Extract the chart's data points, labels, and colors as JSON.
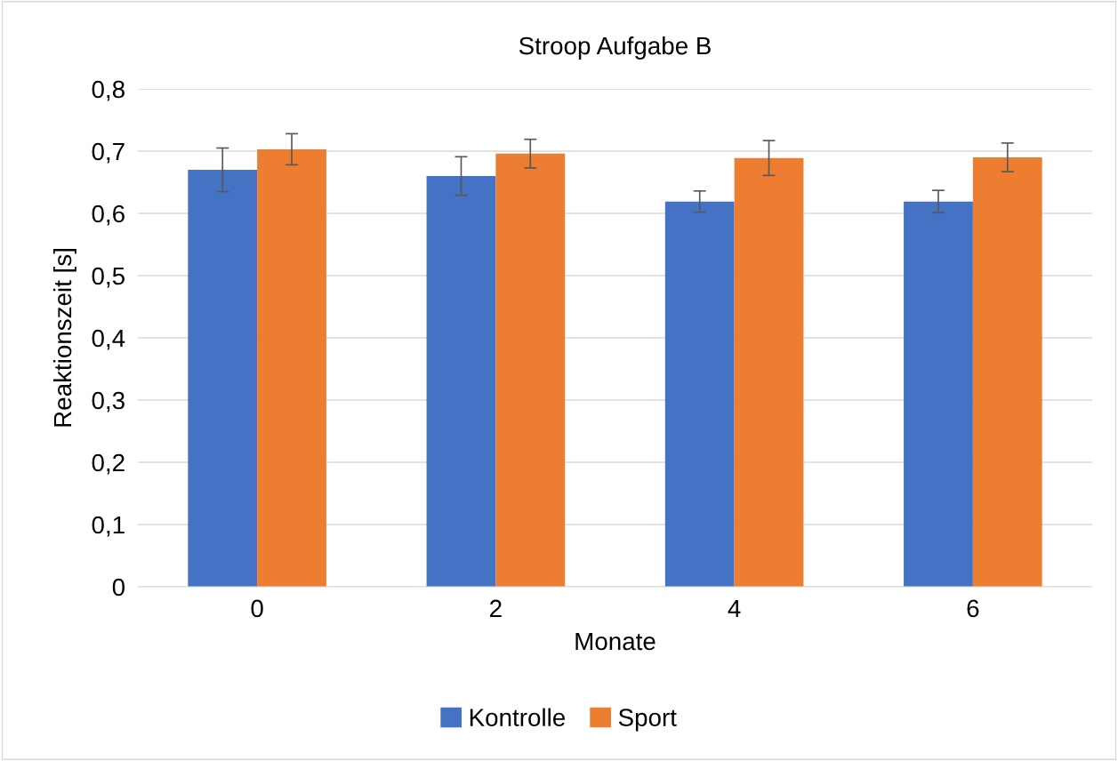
{
  "chart_data": {
    "type": "bar",
    "title": "Stroop Aufgabe B",
    "xlabel": "Monate",
    "ylabel": "Reaktionszeit [s]",
    "categories": [
      "0",
      "2",
      "4",
      "6"
    ],
    "series": [
      {
        "name": "Kontrolle",
        "color": "#4472c4",
        "values": [
          0.67,
          0.66,
          0.619,
          0.619
        ],
        "errors": [
          0.035,
          0.031,
          0.017,
          0.018
        ]
      },
      {
        "name": "Sport",
        "color": "#ed7d31",
        "values": [
          0.703,
          0.696,
          0.689,
          0.69
        ],
        "errors": [
          0.025,
          0.023,
          0.028,
          0.023
        ]
      }
    ],
    "ylim": [
      0,
      0.8
    ],
    "yticks": [
      0,
      {
        "value": 0.1,
        "label": "0,1"
      },
      {
        "value": 0.2,
        "label": "0,2"
      },
      {
        "value": 0.3,
        "label": "0,3"
      },
      {
        "value": 0.4,
        "label": "0,4"
      },
      {
        "value": 0.5,
        "label": "0,5"
      },
      {
        "value": 0.6,
        "label": "0,6"
      },
      {
        "value": 0.7,
        "label": "0,7"
      },
      {
        "value": 0.8,
        "label": "0,8"
      }
    ],
    "grid": "y",
    "legend": "bottom"
  }
}
